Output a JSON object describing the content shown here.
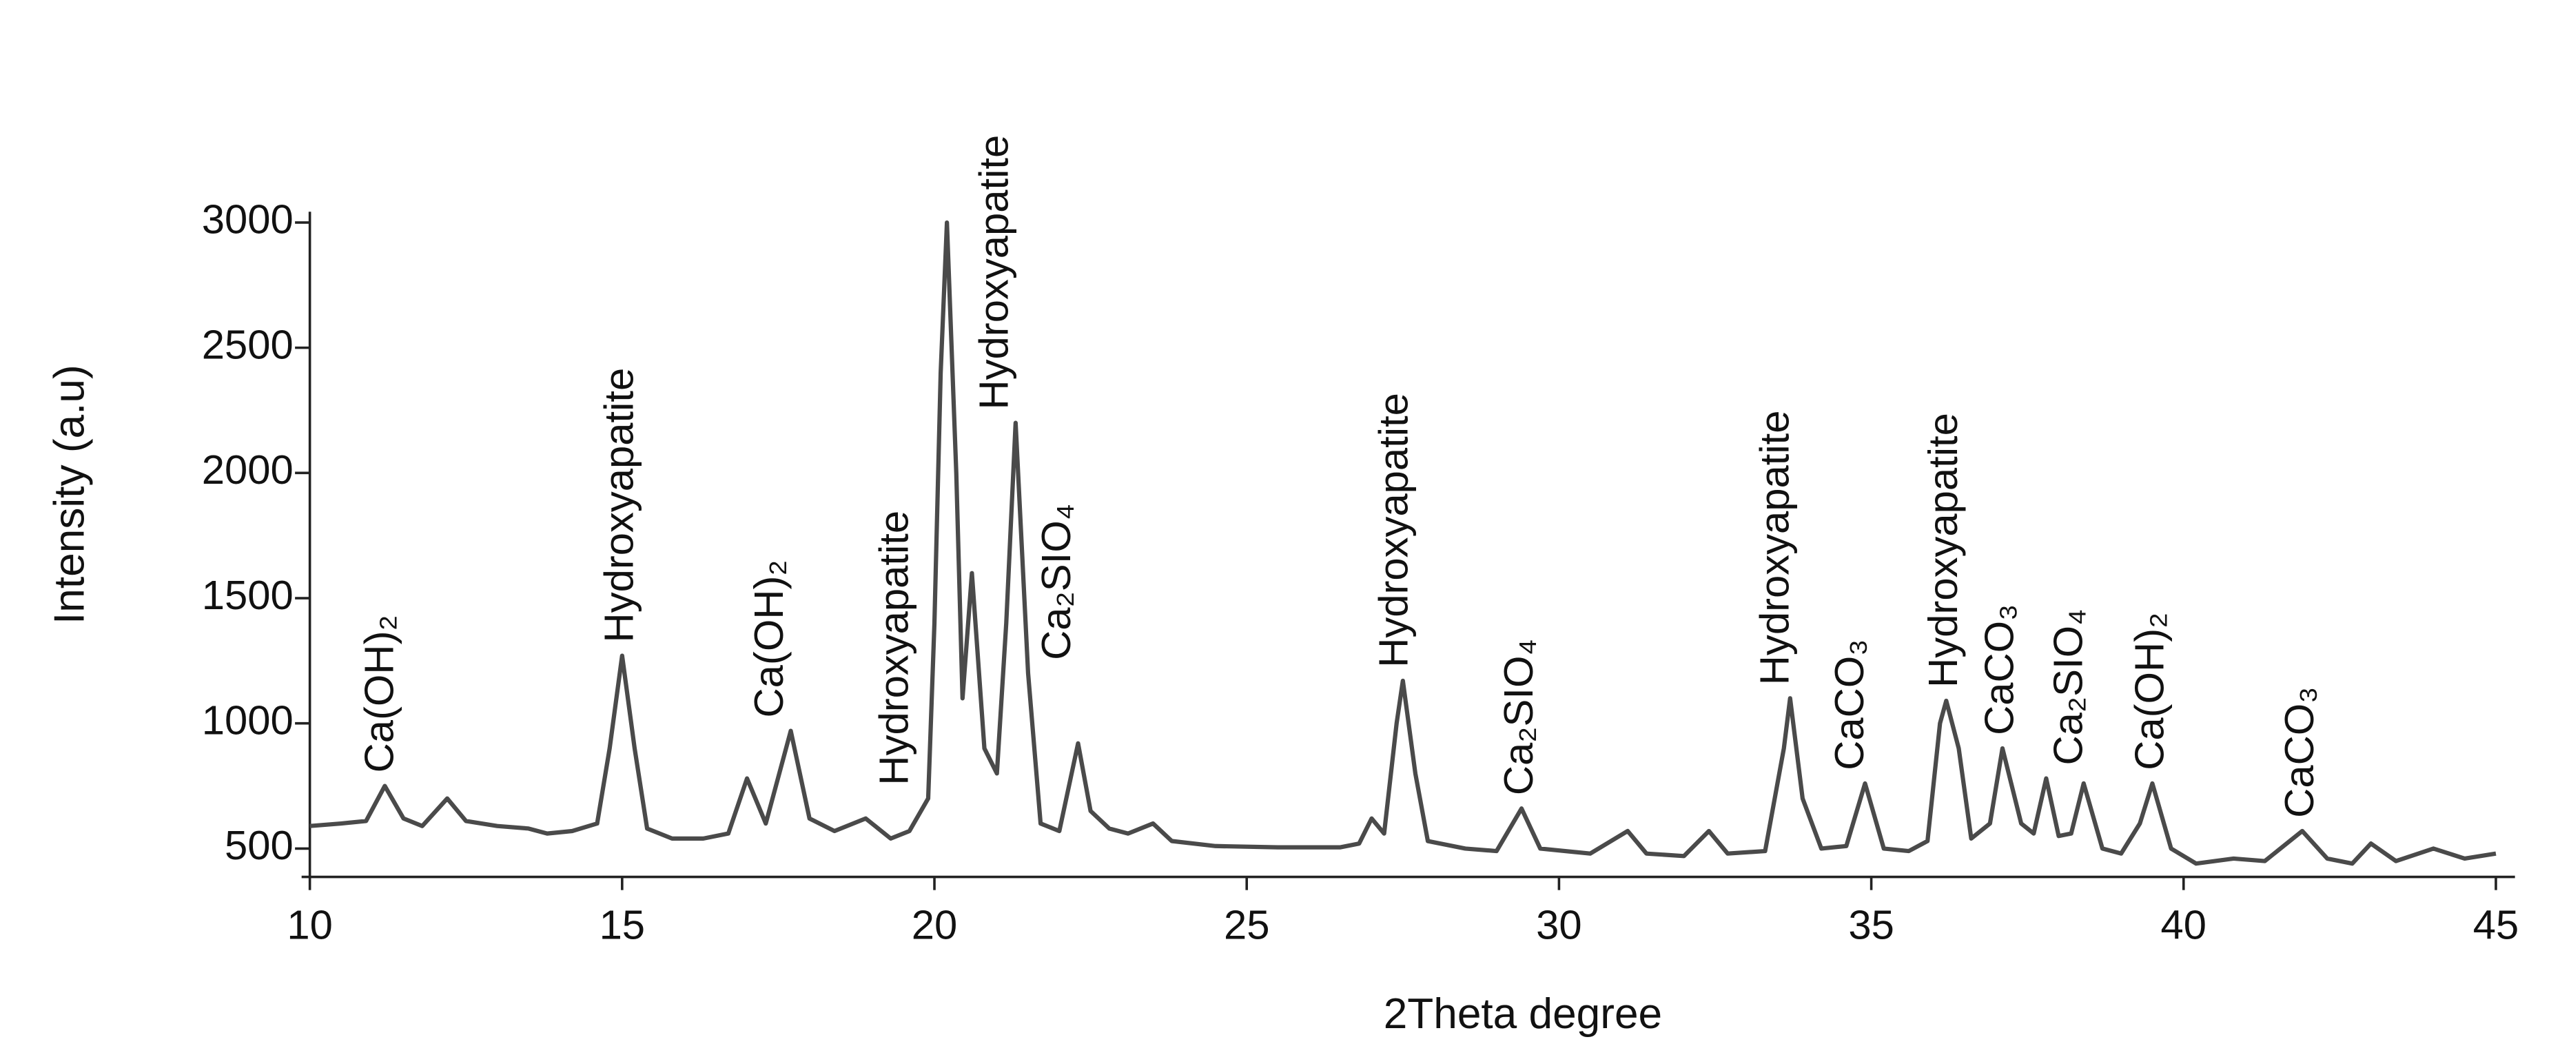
{
  "chart_data": {
    "type": "line",
    "xlabel": "2Theta degree",
    "ylabel": "Intensity (a.u)",
    "xlim": [
      10,
      45.2
    ],
    "xticks": [
      10,
      15,
      20,
      25,
      30,
      35,
      40,
      45
    ],
    "ylim": [
      400,
      3030
    ],
    "yticks": [
      500,
      1000,
      1500,
      2000,
      2500,
      3000
    ],
    "grid": false,
    "series": [
      {
        "color": "#4a4a4a",
        "x": [
          10.0,
          10.5,
          10.9,
          11.2,
          11.5,
          11.8,
          12.2,
          12.5,
          13.0,
          13.5,
          13.8,
          14.2,
          14.6,
          14.8,
          15.0,
          15.2,
          15.4,
          15.8,
          16.3,
          16.7,
          17.0,
          17.3,
          17.7,
          18.0,
          18.4,
          18.9,
          19.3,
          19.6,
          19.9,
          20.0,
          20.1,
          20.2,
          20.35,
          20.45,
          20.6,
          20.8,
          21.0,
          21.15,
          21.3,
          21.5,
          21.7,
          22.0,
          22.3,
          22.5,
          22.8,
          23.1,
          23.5,
          23.8,
          24.5,
          25.5,
          26.5,
          26.8,
          27.0,
          27.2,
          27.4,
          27.5,
          27.7,
          27.9,
          28.5,
          29.0,
          29.4,
          29.7,
          30.5,
          31.1,
          31.4,
          32.0,
          32.4,
          32.7,
          33.3,
          33.6,
          33.7,
          33.9,
          34.2,
          34.6,
          34.9,
          35.2,
          35.6,
          35.9,
          36.1,
          36.2,
          36.4,
          36.6,
          36.9,
          37.1,
          37.4,
          37.6,
          37.8,
          38.0,
          38.2,
          38.4,
          38.7,
          39.0,
          39.3,
          39.5,
          39.8,
          40.2,
          40.8,
          41.3,
          41.9,
          42.3,
          42.7,
          43.0,
          43.4,
          44.0,
          44.5,
          45.0
        ],
        "values": [
          590,
          600,
          610,
          750,
          620,
          590,
          700,
          610,
          590,
          580,
          560,
          570,
          600,
          900,
          1270,
          900,
          580,
          540,
          540,
          560,
          780,
          600,
          970,
          620,
          570,
          620,
          540,
          570,
          700,
          1400,
          2400,
          3000,
          2000,
          1100,
          1600,
          900,
          800,
          1400,
          2200,
          1200,
          600,
          570,
          920,
          650,
          580,
          560,
          600,
          530,
          510,
          505,
          505,
          520,
          620,
          560,
          1000,
          1170,
          800,
          530,
          500,
          490,
          660,
          500,
          480,
          570,
          480,
          470,
          570,
          480,
          490,
          900,
          1100,
          700,
          500,
          510,
          760,
          500,
          490,
          530,
          1000,
          1090,
          900,
          540,
          600,
          900,
          600,
          560,
          780,
          550,
          560,
          760,
          500,
          480,
          600,
          760,
          500,
          440,
          460,
          450,
          570,
          460,
          440,
          520,
          450,
          500,
          460,
          480
        ]
      }
    ],
    "annotations": [
      {
        "text": "Ca(OH)₂",
        "x": 11.16
      },
      {
        "text": "Hydroxyapatite",
        "x": 15.0
      },
      {
        "text": "Ca(OH)₂",
        "x": 17.4
      },
      {
        "text": "Hydroxyapatite",
        "x": 19.4
      },
      {
        "text": "Hydroxyapatite",
        "x": 21.0
      },
      {
        "text": "Ca₂SIO₄",
        "x": 22.0
      },
      {
        "text": "Hydroxyapatite",
        "x": 27.4
      },
      {
        "text": "Ca₂SIO₄",
        "x": 29.4
      },
      {
        "text": "Hydroxyapatite",
        "x": 33.5
      },
      {
        "text": "CaCO₃",
        "x": 34.7
      },
      {
        "text": "Hydroxyapatite",
        "x": 36.2
      },
      {
        "text": "CaCO₃",
        "x": 37.1
      },
      {
        "text": "Ca₂SIO₄",
        "x": 38.2
      },
      {
        "text": "Ca(OH)₂",
        "x": 39.5
      },
      {
        "text": "CaCO₃",
        "x": 41.9
      }
    ]
  }
}
